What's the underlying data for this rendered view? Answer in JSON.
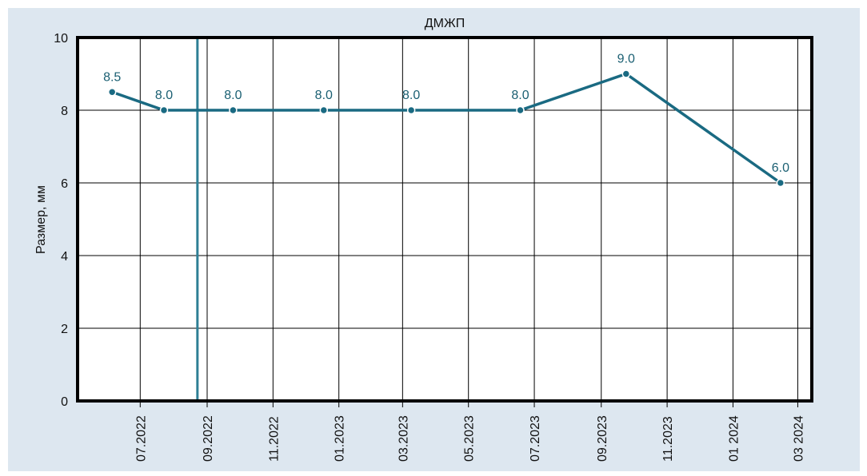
{
  "chart_data": {
    "type": "line",
    "title": "ДМЖП",
    "xlabel": "",
    "ylabel": "Размер, мм",
    "ylim": [
      0,
      10
    ],
    "yticks": [
      "0",
      "2",
      "4",
      "6",
      "8",
      "10"
    ],
    "xlim": [
      "2022-05-04",
      "2024-03-14"
    ],
    "xticks": [
      {
        "date": "2022-07-01",
        "label": "07.2022"
      },
      {
        "date": "2022-09-01",
        "label": "09.2022"
      },
      {
        "date": "2022-11-01",
        "label": "11.2022"
      },
      {
        "date": "2023-01-01",
        "label": "01.2023"
      },
      {
        "date": "2023-03-01",
        "label": "03.2023"
      },
      {
        "date": "2023-05-01",
        "label": "05.2023"
      },
      {
        "date": "2023-07-01",
        "label": "07.2023"
      },
      {
        "date": "2023-09-01",
        "label": "09.2023"
      },
      {
        "date": "2023-11-01",
        "label": "11.2023"
      },
      {
        "date": "2024-01-01",
        "label": "01 2024"
      },
      {
        "date": "2024-03-01",
        "label": "03 2024"
      }
    ],
    "grid": true,
    "marker_line_date": "2022-08-23",
    "series": [
      {
        "name": "ДМЖП",
        "color": "#1a6a82",
        "points": [
          {
            "date": "2022-06-05",
            "value": 8.5,
            "label": "8.5"
          },
          {
            "date": "2022-07-23",
            "value": 8.0,
            "label": "8.0"
          },
          {
            "date": "2022-09-25",
            "value": 8.0,
            "label": "8.0"
          },
          {
            "date": "2022-12-18",
            "value": 8.0,
            "label": "8.0"
          },
          {
            "date": "2023-03-09",
            "value": 8.0,
            "label": "8.0"
          },
          {
            "date": "2023-06-18",
            "value": 8.0,
            "label": "8.0"
          },
          {
            "date": "2023-09-24",
            "value": 9.0,
            "label": "9.0"
          },
          {
            "date": "2024-02-14",
            "value": 6.0,
            "label": "6.0"
          }
        ]
      }
    ]
  }
}
